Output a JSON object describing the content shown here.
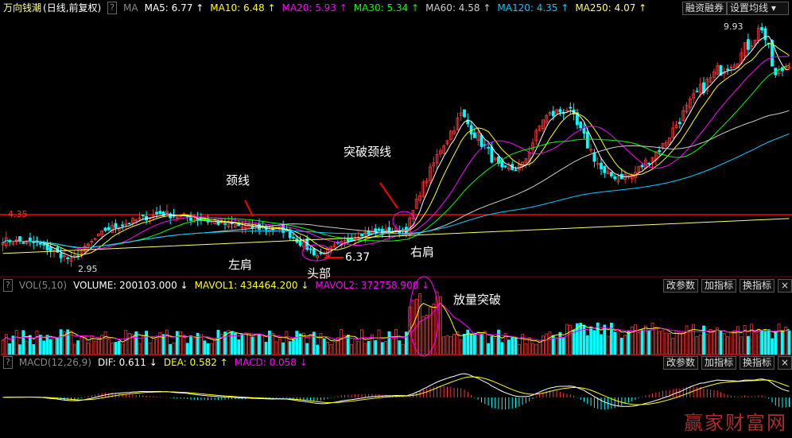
{
  "header": {
    "title": "万向钱潮",
    "subtitle": "(日线,前复权)",
    "help": "?",
    "ma_label": "MA",
    "ma": [
      {
        "text": "MA5: 6.77",
        "arrow": "↑",
        "color": "#ffffff"
      },
      {
        "text": "MA10: 6.48",
        "arrow": "↑",
        "color": "#ffff00"
      },
      {
        "text": "MA20: 5.93",
        "arrow": "↑",
        "color": "#ff00ff"
      },
      {
        "text": "MA30: 5.34",
        "arrow": "↑",
        "color": "#00ff00"
      },
      {
        "text": "MA60: 4.58",
        "arrow": "↑",
        "color": "#cccccc"
      },
      {
        "text": "MA120: 4.35",
        "arrow": "↑",
        "color": "#00ccff"
      },
      {
        "text": "MA250: 4.07",
        "arrow": "↑",
        "color": "#ffff66"
      }
    ],
    "buttons": {
      "margin": "融资融券",
      "set_ma": "设置均线 ▾"
    }
  },
  "vol_header": {
    "name": "VOL(5,10)",
    "volume": "VOLUME: 200103.000 ↓",
    "mavol1": "MAVOL1: 434464.200 ↓",
    "mavol2": "MAVOL2: 372758.900 ↓"
  },
  "macd_header": {
    "name": "MACD(12,26,9)",
    "dif": "DIF: 0.611 ↓",
    "dea": "DEA: 0.582 ↑",
    "macd": "MACD: 0.058 ↓"
  },
  "panel_buttons": {
    "edit": "改参数",
    "add": "加指标",
    "swap": "换指标",
    "close": "×"
  },
  "annotations": {
    "neckline": "颈线",
    "breakout": "突破颈线",
    "left_shoulder": "左肩",
    "head": "头部",
    "right_shoulder": "右肩",
    "head_value": "6.37",
    "volume_breakout": "放量突破",
    "neck_price": "4.35",
    "high": "9.93",
    "low": "2.95"
  },
  "watermark": "赢家财富网",
  "chart_data": {
    "type": "candlestick",
    "neckline": 4.35,
    "high": 9.93,
    "low": 2.95,
    "keypoints": [
      [
        0,
        3.6
      ],
      [
        10,
        3.5
      ],
      [
        20,
        3.0
      ],
      [
        30,
        3.9
      ],
      [
        46,
        4.4
      ],
      [
        58,
        4.2
      ],
      [
        70,
        4.0
      ],
      [
        82,
        3.9
      ],
      [
        92,
        3.15
      ],
      [
        105,
        3.8
      ],
      [
        118,
        3.9
      ],
      [
        122,
        5.0
      ],
      [
        128,
        6.3
      ],
      [
        134,
        7.3
      ],
      [
        140,
        6.5
      ],
      [
        146,
        5.6
      ],
      [
        152,
        5.8
      ],
      [
        158,
        7.2
      ],
      [
        165,
        7.5
      ],
      [
        170,
        6.6
      ],
      [
        176,
        5.5
      ],
      [
        184,
        5.5
      ],
      [
        193,
        6.4
      ],
      [
        202,
        7.8
      ],
      [
        209,
        8.6
      ],
      [
        216,
        9.1
      ],
      [
        222,
        9.93
      ],
      [
        226,
        8.4
      ],
      [
        230,
        8.9
      ]
    ],
    "colors": {
      "up": "#ff3333",
      "down": "#00ffff",
      "neck": "#ff0000"
    }
  }
}
